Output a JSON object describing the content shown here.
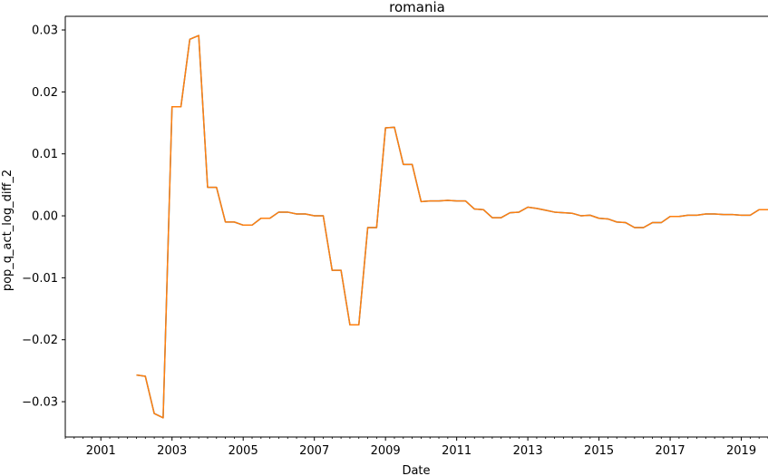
{
  "chart_data": {
    "type": "line",
    "title": "romania",
    "xlabel": "Date",
    "ylabel": "pop_q_act_log_diff_2",
    "xlim": [
      2000.0,
      2019.75
    ],
    "ylim": [
      -0.0357,
      0.0322
    ],
    "x_ticks": [
      {
        "value": 2001,
        "label": "2001"
      },
      {
        "value": 2003,
        "label": "2003"
      },
      {
        "value": 2005,
        "label": "2005"
      },
      {
        "value": 2007,
        "label": "2007"
      },
      {
        "value": 2009,
        "label": "2009"
      },
      {
        "value": 2011,
        "label": "2011"
      },
      {
        "value": 2013,
        "label": "2013"
      },
      {
        "value": 2015,
        "label": "2015"
      },
      {
        "value": 2017,
        "label": "2017"
      },
      {
        "value": 2019,
        "label": "2019"
      }
    ],
    "y_ticks": [
      {
        "value": 0.03,
        "label": "0.03"
      },
      {
        "value": 0.02,
        "label": "0.02"
      },
      {
        "value": 0.01,
        "label": "0.01"
      },
      {
        "value": 0.0,
        "label": "0.00"
      },
      {
        "value": -0.01,
        "label": "−0.01"
      },
      {
        "value": -0.02,
        "label": "−0.02"
      },
      {
        "value": -0.03,
        "label": "−0.03"
      }
    ],
    "grid": false,
    "series": [
      {
        "name": "series-blue",
        "color": "#1f77b4",
        "x": [
          2002.0,
          2002.25,
          2002.5,
          2002.75,
          2003.0,
          2003.25,
          2003.5,
          2003.75,
          2004.0,
          2004.25,
          2004.5,
          2004.75,
          2005.0,
          2005.25,
          2005.5,
          2005.75,
          2006.0,
          2006.25,
          2006.5,
          2006.75,
          2007.0,
          2007.25,
          2007.5,
          2007.75,
          2008.0,
          2008.25,
          2008.5,
          2008.75,
          2009.0,
          2009.25,
          2009.5,
          2009.75,
          2010.0,
          2010.25,
          2010.5,
          2010.75,
          2011.0,
          2011.25,
          2011.5,
          2011.75,
          2012.0,
          2012.25,
          2012.5,
          2012.75,
          2013.0,
          2013.25,
          2013.5,
          2013.75,
          2014.0,
          2014.25,
          2014.5,
          2014.75,
          2015.0,
          2015.25,
          2015.5,
          2015.75,
          2016.0,
          2016.25,
          2016.5,
          2016.75,
          2017.0,
          2017.25,
          2017.5,
          2017.75,
          2018.0,
          2018.25,
          2018.5,
          2018.75,
          2019.0,
          2019.25,
          2019.5,
          2019.75
        ],
        "values": [
          -0.0257,
          -0.0259,
          -0.0319,
          -0.0326,
          0.0176,
          0.0176,
          0.0285,
          0.0291,
          0.0046,
          0.0046,
          -0.001,
          -0.001,
          -0.0015,
          -0.0015,
          -0.0004,
          -0.0004,
          0.0006,
          0.0006,
          0.0003,
          0.0003,
          0.0,
          0.0,
          -0.0088,
          -0.0088,
          -0.0176,
          -0.0176,
          -0.0019,
          -0.0019,
          0.0142,
          0.0143,
          0.0083,
          0.0083,
          0.0023,
          0.0024,
          0.0024,
          0.0025,
          0.0024,
          0.0024,
          0.0011,
          0.001,
          -0.0003,
          -0.0003,
          0.0005,
          0.0006,
          0.0014,
          0.0012,
          0.0009,
          0.0006,
          0.0005,
          0.0004,
          0.0,
          0.0001,
          -0.0004,
          -0.0005,
          -0.001,
          -0.0011,
          -0.0019,
          -0.0019,
          -0.0011,
          -0.0011,
          -0.0001,
          -0.0001,
          0.0001,
          0.0001,
          0.0003,
          0.0003,
          0.0002,
          0.0002,
          0.0001,
          0.0001,
          0.001,
          0.001
        ]
      },
      {
        "name": "series-orange",
        "color": "#ff7f0e",
        "x": [
          2002.0,
          2002.25,
          2002.5,
          2002.75,
          2003.0,
          2003.25,
          2003.5,
          2003.75,
          2004.0,
          2004.25,
          2004.5,
          2004.75,
          2005.0,
          2005.25,
          2005.5,
          2005.75,
          2006.0,
          2006.25,
          2006.5,
          2006.75,
          2007.0,
          2007.25,
          2007.5,
          2007.75,
          2008.0,
          2008.25,
          2008.5,
          2008.75,
          2009.0,
          2009.25,
          2009.5,
          2009.75,
          2010.0,
          2010.25,
          2010.5,
          2010.75,
          2011.0,
          2011.25,
          2011.5,
          2011.75,
          2012.0,
          2012.25,
          2012.5,
          2012.75,
          2013.0,
          2013.25,
          2013.5,
          2013.75,
          2014.0,
          2014.25,
          2014.5,
          2014.75,
          2015.0,
          2015.25,
          2015.5,
          2015.75,
          2016.0,
          2016.25,
          2016.5,
          2016.75,
          2017.0,
          2017.25,
          2017.5,
          2017.75,
          2018.0,
          2018.25,
          2018.5,
          2018.75,
          2019.0,
          2019.25,
          2019.5,
          2019.75
        ],
        "values": [
          -0.0257,
          -0.0259,
          -0.0319,
          -0.0326,
          0.0176,
          0.0176,
          0.0285,
          0.0291,
          0.0046,
          0.0046,
          -0.001,
          -0.001,
          -0.0015,
          -0.0015,
          -0.0004,
          -0.0004,
          0.0006,
          0.0006,
          0.0003,
          0.0003,
          0.0,
          0.0,
          -0.0088,
          -0.0088,
          -0.0176,
          -0.0176,
          -0.0019,
          -0.0019,
          0.0142,
          0.0143,
          0.0083,
          0.0083,
          0.0023,
          0.0024,
          0.0024,
          0.0025,
          0.0024,
          0.0024,
          0.0011,
          0.001,
          -0.0003,
          -0.0003,
          0.0005,
          0.0006,
          0.0014,
          0.0012,
          0.0009,
          0.0006,
          0.0005,
          0.0004,
          0.0,
          0.0001,
          -0.0004,
          -0.0005,
          -0.001,
          -0.0011,
          -0.0019,
          -0.0019,
          -0.0011,
          -0.0011,
          -0.0001,
          -0.0001,
          0.0001,
          0.0001,
          0.0003,
          0.0003,
          0.0002,
          0.0002,
          0.0001,
          0.0001,
          0.001,
          0.001
        ]
      }
    ]
  }
}
